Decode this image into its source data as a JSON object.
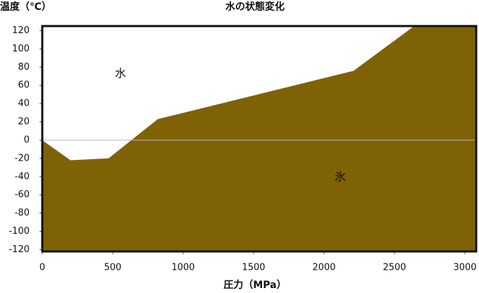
{
  "chart_data": {
    "type": "area",
    "title": "水の状態変化",
    "x_label": "圧力（MPa）",
    "y_label": "温度（℃）",
    "x": [
      0,
      200,
      470,
      820,
      2210,
      2640,
      3080
    ],
    "series": [
      {
        "name": "氷",
        "color": "#7f6206",
        "values": [
          0,
          -22,
          -20,
          23,
          76,
          125,
          125
        ]
      }
    ],
    "annotations": [
      "水",
      "氷"
    ],
    "xlim": [
      0,
      3080
    ],
    "ylim": [
      -122,
      125
    ],
    "xticks": [
      0,
      500,
      1000,
      1500,
      2000,
      2500,
      3000
    ],
    "yticks": [
      -120,
      -100,
      -80,
      -60,
      -40,
      -20,
      0,
      20,
      40,
      60,
      80,
      100,
      120
    ]
  }
}
